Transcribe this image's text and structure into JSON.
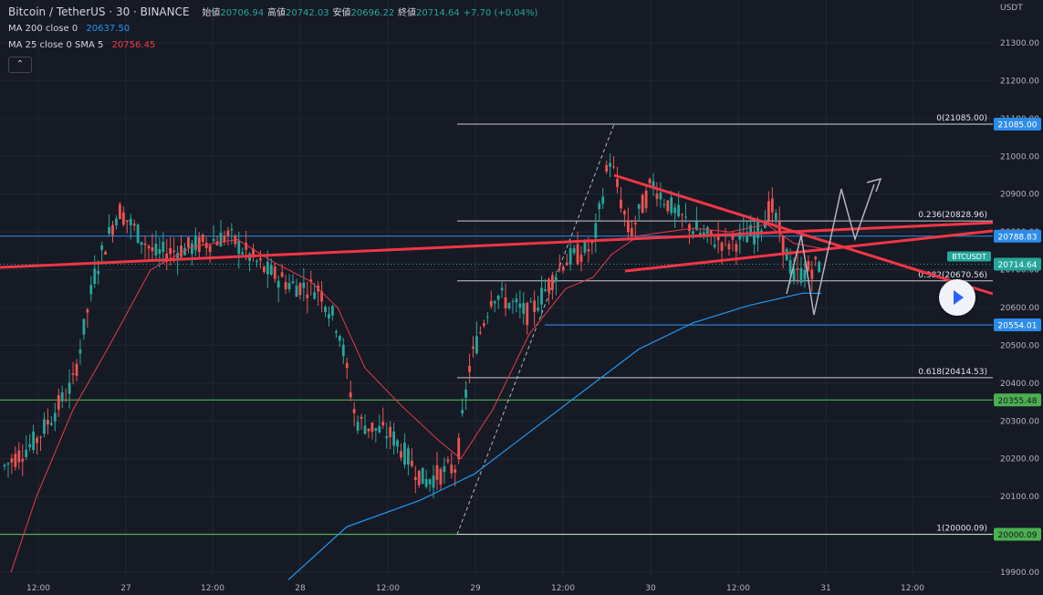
{
  "header": {
    "symbol": "Bitcoin / TetherUS · 30 · BINANCE",
    "ohlc": [
      {
        "label": "始値",
        "value": "20706.94"
      },
      {
        "label": "高値",
        "value": "20742.03"
      },
      {
        "label": "安値",
        "value": "20696.22"
      },
      {
        "label": "終値",
        "value": "20714.64"
      }
    ],
    "change": "+7.70 (+0.04%)"
  },
  "indicators": [
    {
      "label": "MA 200 close 0",
      "value": "20637.50",
      "color": "#2196f3"
    },
    {
      "label": "MA 25 close 0 SMA 5",
      "value": "20756.45",
      "color": "#f23645"
    }
  ],
  "collapse_glyph": "⌃",
  "currency": "USDT",
  "colors": {
    "background": "#161a25",
    "up": "#26a69a",
    "down": "#ef5350",
    "ma200": "#2196f3",
    "ma25": "#e8394b",
    "trendline": "#f23645",
    "fib": "#c8cbd2",
    "level_blue": "#2d8ceb",
    "level_green": "#4caf50"
  },
  "icons": {
    "collapse": "chevron-up-icon",
    "play": "play-icon"
  },
  "chart_data": {
    "type": "candlestick",
    "symbol": "BTCUSDT",
    "timeframe": "30",
    "ylim": [
      19900,
      21400
    ],
    "y_ticks": [
      "21300.00",
      "21200.00",
      "21100.00",
      "21000.00",
      "20900.00",
      "20800.00",
      "20700.00",
      "20600.00",
      "20500.00",
      "20400.00",
      "20300.00",
      "20200.00",
      "20100.00",
      "20000.00",
      "19900.00"
    ],
    "x_ticks": [
      "12:00",
      "27",
      "12:00",
      "28",
      "12:00",
      "29",
      "12:00",
      "30",
      "12:00",
      "31",
      "12:00"
    ],
    "price_labels": [
      {
        "text": "21085.00",
        "value": 21085.0,
        "kind": "blue"
      },
      {
        "text": "20788.83",
        "value": 20788.83,
        "kind": "blue"
      },
      {
        "text": "20714.64",
        "value": 20714.64,
        "kind": "last",
        "tag": "BTCUSDT"
      },
      {
        "text": "20554.01",
        "value": 20554.01,
        "kind": "blue"
      },
      {
        "text": "20355.48",
        "value": 20355.48,
        "kind": "green"
      },
      {
        "text": "20000.09",
        "value": 20000.09,
        "kind": "green"
      }
    ],
    "fib_levels": [
      {
        "label": "0(21085.00)",
        "value": 21085.0
      },
      {
        "label": "0.236(20828.96)",
        "value": 20828.96
      },
      {
        "label": "0.382(20670.56)",
        "value": 20670.56
      },
      {
        "label": "0.618(20414.53)",
        "value": 20414.53
      },
      {
        "label": "1(20000.09)",
        "value": 20000.09
      }
    ],
    "ohlc_sample": {
      "open": 20706.94,
      "high": 20742.03,
      "low": 20696.22,
      "close": 20714.64
    },
    "ma200_last": 20637.5,
    "ma25_last": 20756.45
  }
}
